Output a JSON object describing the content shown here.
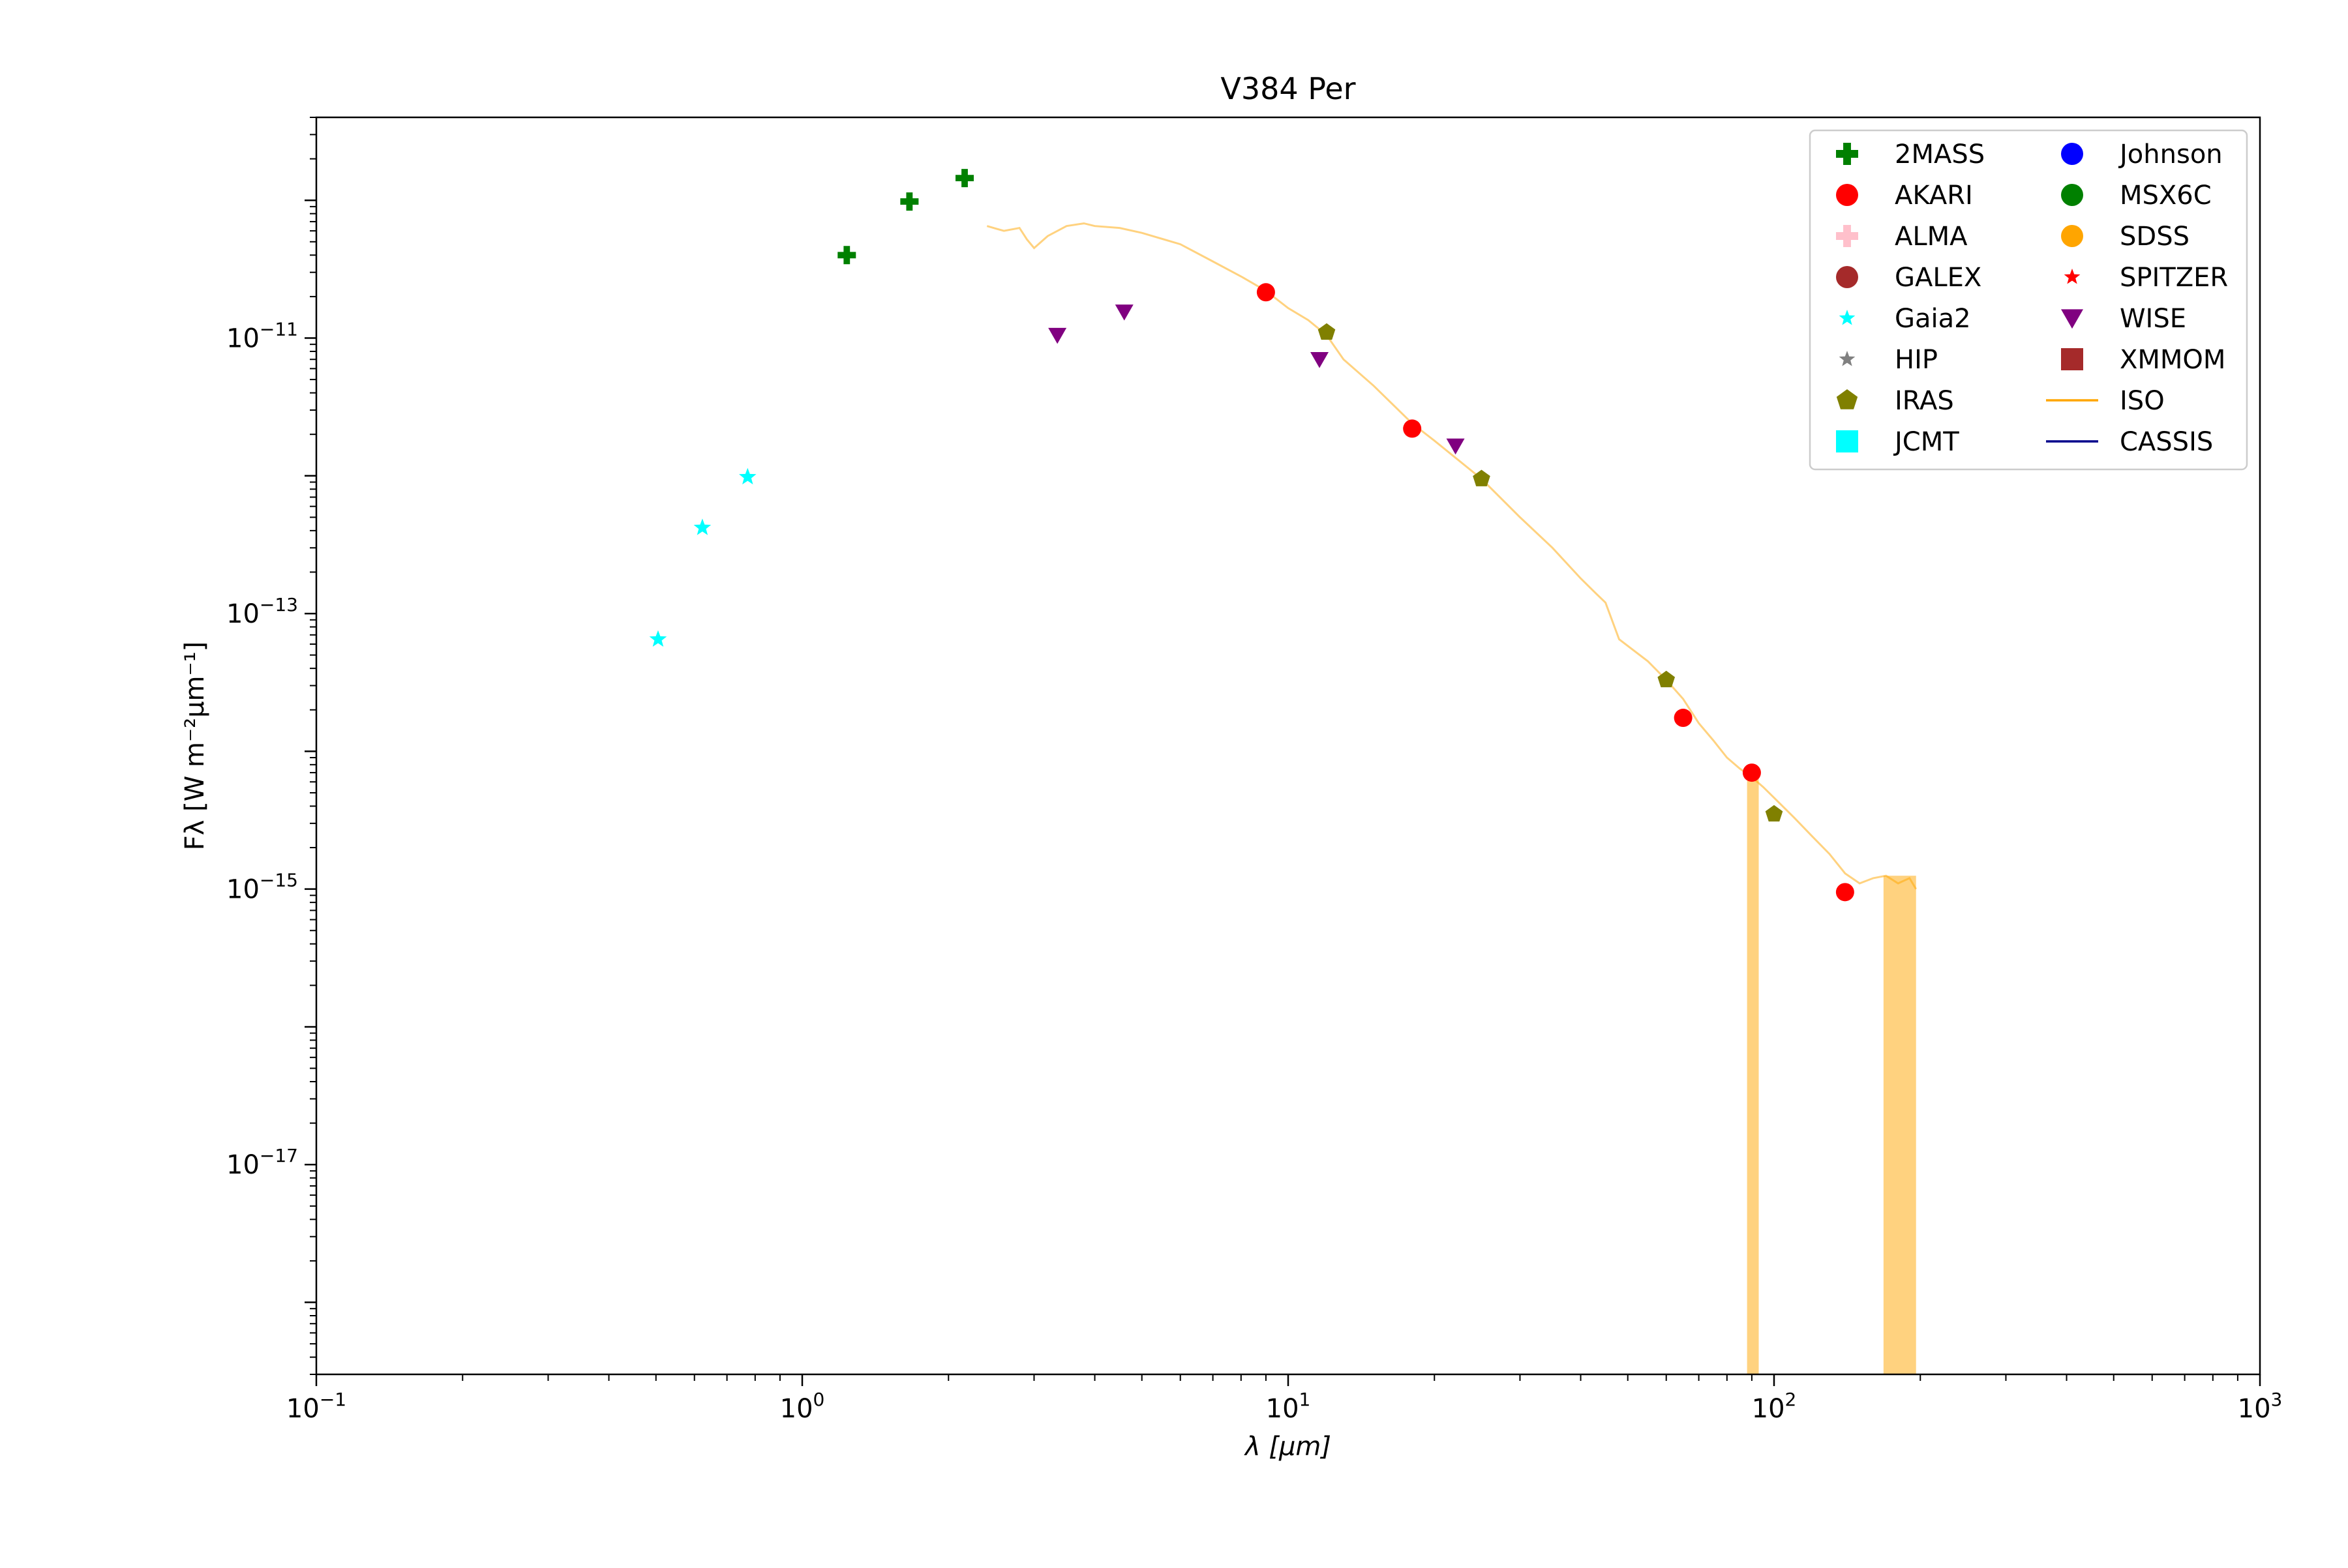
{
  "chart_data": {
    "type": "scatter",
    "title": "V384 Per",
    "xlabel": "λ [μm]",
    "ylabel": "Fλ [W m⁻²μm⁻¹]",
    "xscale": "log",
    "yscale": "log",
    "xlim": [
      0.1,
      1000
    ],
    "ylim": [
      3e-19,
      4e-10
    ],
    "x_ticks": [
      {
        "value": 0.1,
        "base": "10",
        "exp": "−1"
      },
      {
        "value": 1,
        "base": "10",
        "exp": "0"
      },
      {
        "value": 10,
        "base": "10",
        "exp": "1"
      },
      {
        "value": 100,
        "base": "10",
        "exp": "2"
      },
      {
        "value": 1000,
        "base": "10",
        "exp": "3"
      }
    ],
    "y_ticks": [
      {
        "value": 1e-17,
        "base": "10",
        "exp": "−17"
      },
      {
        "value": 1e-15,
        "base": "10",
        "exp": "−15"
      },
      {
        "value": 1e-13,
        "base": "10",
        "exp": "−13"
      },
      {
        "value": 1e-11,
        "base": "10",
        "exp": "−11"
      }
    ],
    "grid": false,
    "legend_position": "top-right",
    "legend": [
      {
        "name": "2MASS",
        "marker": "plus",
        "color": "#008000"
      },
      {
        "name": "AKARI",
        "marker": "circle",
        "color": "#ff0000"
      },
      {
        "name": "ALMA",
        "marker": "plus",
        "color": "#ffc0cb"
      },
      {
        "name": "GALEX",
        "marker": "circle",
        "color": "#a52a2a"
      },
      {
        "name": "Gaia2",
        "marker": "star",
        "color": "#00ffff"
      },
      {
        "name": "HIP",
        "marker": "star",
        "color": "#808080"
      },
      {
        "name": "IRAS",
        "marker": "pentagon",
        "color": "#808000"
      },
      {
        "name": "JCMT",
        "marker": "square",
        "color": "#00ffff"
      },
      {
        "name": "Johnson",
        "marker": "circle",
        "color": "#0000ff"
      },
      {
        "name": "MSX6C",
        "marker": "circle",
        "color": "#008000"
      },
      {
        "name": "SDSS",
        "marker": "circle",
        "color": "#ffa500"
      },
      {
        "name": "SPITZER",
        "marker": "star",
        "color": "#ff0000"
      },
      {
        "name": "WISE",
        "marker": "triangle-down",
        "color": "#800080"
      },
      {
        "name": "XMMOM",
        "marker": "square",
        "color": "#a52a2a"
      },
      {
        "name": "ISO",
        "marker": "line",
        "color": "#ffa500"
      },
      {
        "name": "CASSIS",
        "marker": "line",
        "color": "#00008b"
      }
    ],
    "series": [
      {
        "name": "2MASS",
        "marker": "plus",
        "color": "#008000",
        "x": [
          1.235,
          1.662,
          2.159
        ],
        "y": [
          4e-11,
          9.8e-11,
          1.45e-10
        ]
      },
      {
        "name": "Gaia2",
        "marker": "star",
        "color": "#00ffff",
        "x": [
          0.505,
          0.623,
          0.772
        ],
        "y": [
          6.5e-14,
          4.2e-13,
          9.8e-13
        ]
      },
      {
        "name": "WISE",
        "marker": "triangle-down",
        "color": "#800080",
        "x": [
          3.35,
          4.6,
          11.6,
          22.1
        ],
        "y": [
          1.05e-11,
          1.55e-11,
          7e-12,
          1.65e-12
        ]
      },
      {
        "name": "AKARI",
        "marker": "circle",
        "color": "#ff0000",
        "x": [
          9.0,
          18.0,
          65.0,
          90.0,
          140.0
        ],
        "y": [
          2.15e-11,
          2.2e-12,
          1.75e-14,
          7e-15,
          9.5e-16
        ]
      },
      {
        "name": "IRAS",
        "marker": "pentagon",
        "color": "#808000",
        "x": [
          12.0,
          25.0,
          60.0,
          100.0
        ],
        "y": [
          1.1e-11,
          9.5e-13,
          3.3e-14,
          3.5e-15
        ]
      },
      {
        "name": "ISO",
        "marker": "line",
        "color": "#ffa500",
        "x": [
          2.4,
          2.6,
          2.8,
          2.9,
          3.0,
          3.2,
          3.5,
          3.8,
          4.0,
          4.5,
          5.0,
          6.0,
          7.0,
          8.0,
          9.0,
          10.0,
          11.0,
          12.0,
          13.0,
          15.0,
          18.0,
          20.0,
          25.0,
          30.0,
          35.0,
          40.0,
          43.0,
          45.0,
          48.0,
          55.0,
          60.0,
          65.0,
          70.0,
          75.0,
          80.0,
          85.0,
          90.0,
          95.0,
          100.0,
          110.0,
          120.0,
          130.0,
          140.0,
          150.0,
          160.0,
          170.0,
          180.0,
          190.0,
          196.0
        ],
        "y": [
          6.5e-11,
          6e-11,
          6.3e-11,
          5.2e-11,
          4.5e-11,
          5.5e-11,
          6.5e-11,
          6.8e-11,
          6.5e-11,
          6.3e-11,
          5.8e-11,
          4.8e-11,
          3.6e-11,
          2.8e-11,
          2.2e-11,
          1.65e-11,
          1.35e-11,
          1.05e-11,
          7e-12,
          4.5e-12,
          2.4e-12,
          1.8e-12,
          9.5e-13,
          5e-13,
          3e-13,
          1.8e-13,
          1.4e-13,
          1.2e-13,
          6.5e-14,
          4.5e-14,
          3.3e-14,
          2.4e-14,
          1.6e-14,
          1.2e-14,
          9e-15,
          7.5e-15,
          6.5e-15,
          5.5e-15,
          4.6e-15,
          3.3e-15,
          2.4e-15,
          1.8e-15,
          1.3e-15,
          1.1e-15,
          1.2e-15,
          1.25e-15,
          1.1e-15,
          1.2e-15,
          1e-15
        ],
        "dropouts": [
          {
            "x": [
              88.0,
              93.0
            ],
            "y_min": 3e-19
          },
          {
            "x": [
              168.0,
              196.0
            ],
            "y_min": 3e-19
          }
        ]
      }
    ]
  }
}
